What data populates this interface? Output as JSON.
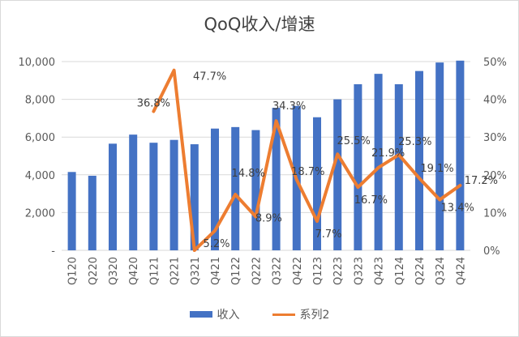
{
  "chart_data": {
    "type": "bar",
    "title": "QoQ收入/增速",
    "categories": [
      "Q120",
      "Q220",
      "Q320",
      "Q420",
      "Q121",
      "Q221",
      "Q321",
      "Q421",
      "Q122",
      "Q222",
      "Q322",
      "Q422",
      "Q123",
      "Q223",
      "Q323",
      "Q423",
      "Q124",
      "Q224",
      "Q324",
      "Q424"
    ],
    "series": [
      {
        "name": "收入",
        "type": "bar",
        "axis": "left",
        "values": [
          4150,
          3950,
          5650,
          6130,
          5700,
          5850,
          5620,
          6450,
          6530,
          6370,
          7550,
          7650,
          7050,
          8000,
          8800,
          9350,
          8800,
          9500,
          9950,
          10050
        ]
      },
      {
        "name": "系列2",
        "type": "line",
        "axis": "right",
        "values": [
          null,
          null,
          null,
          null,
          36.8,
          47.7,
          0.0,
          5.2,
          14.8,
          8.9,
          34.3,
          18.7,
          7.7,
          25.5,
          16.7,
          21.9,
          25.3,
          19.1,
          13.4,
          17.2
        ]
      }
    ],
    "data_labels": [
      {
        "text": "36.8%",
        "index": 4,
        "value": 36.8
      },
      {
        "text": "47.7%",
        "index": 5,
        "value": 47.7
      },
      {
        "text": "5.2%",
        "index": 7,
        "value": 5.2
      },
      {
        "text": "14.8%",
        "index": 8,
        "value": 14.8
      },
      {
        "text": "8.9%",
        "index": 9,
        "value": 8.9
      },
      {
        "text": "34.3%",
        "index": 10,
        "value": 34.3
      },
      {
        "text": "18.7%",
        "index": 11,
        "value": 18.7
      },
      {
        "text": "7.7%",
        "index": 12,
        "value": 7.7
      },
      {
        "text": "25.5%",
        "index": 13,
        "value": 25.5
      },
      {
        "text": "16.7%",
        "index": 14,
        "value": 16.7
      },
      {
        "text": "21.9%",
        "index": 15,
        "value": 21.9
      },
      {
        "text": "25.3%",
        "index": 16,
        "value": 25.3
      },
      {
        "text": "19.1%",
        "index": 17,
        "value": 19.1
      },
      {
        "text": "13.4%",
        "index": 18,
        "value": 13.4
      },
      {
        "text": "17.2%",
        "index": 19,
        "value": 17.2
      }
    ],
    "y_left": {
      "ylim": [
        0,
        10000
      ],
      "ticks": [
        0,
        2000,
        4000,
        6000,
        8000,
        10000
      ],
      "tick_labels": [
        "-",
        "2,000",
        "4,000",
        "6,000",
        "8,000",
        "10,000"
      ]
    },
    "y_right": {
      "ylim": [
        0,
        50
      ],
      "ticks": [
        0,
        10,
        20,
        30,
        40,
        50
      ],
      "tick_labels": [
        "0%",
        "10%",
        "20%",
        "30%",
        "40%",
        "50%"
      ]
    },
    "xlabel": "",
    "ylabel": "",
    "grid": true,
    "legend": "bottom",
    "colors": {
      "bar": "#4472c4",
      "line": "#ed7d31",
      "grid": "#d9d9d9"
    }
  }
}
